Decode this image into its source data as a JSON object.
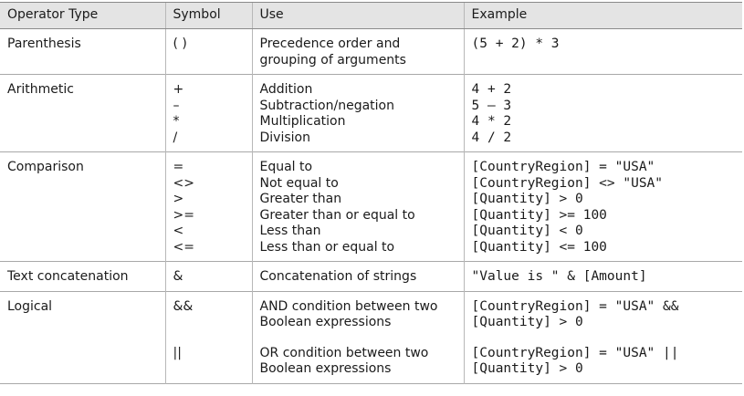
{
  "headers": {
    "type": "Operator Type",
    "symbol": "Symbol",
    "use": "Use",
    "example": "Example"
  },
  "rows": [
    {
      "type": "Parenthesis",
      "symbols": [
        "( )"
      ],
      "uses": [
        "Precedence order and",
        "grouping of arguments"
      ],
      "examples": [
        "(5 + 2) * 3"
      ]
    },
    {
      "type": "Arithmetic",
      "symbols": [
        "+",
        "–",
        "*",
        "/"
      ],
      "uses": [
        "Addition",
        "Subtraction/negation",
        "Multiplication",
        "Division"
      ],
      "examples": [
        "4 + 2",
        "5 – 3",
        "4 * 2",
        "4 / 2"
      ]
    },
    {
      "type": "Comparison",
      "symbols": [
        "=",
        "<>",
        ">",
        ">=",
        "<",
        "<="
      ],
      "uses": [
        "Equal to",
        "Not equal to",
        "Greater than",
        "Greater than or equal to",
        "Less than",
        "Less than or equal to"
      ],
      "examples": [
        "[CountryRegion] = \"USA\"",
        "[CountryRegion] <> \"USA\"",
        "[Quantity] > 0",
        "[Quantity] >= 100",
        "[Quantity] < 0",
        "[Quantity] <= 100"
      ]
    },
    {
      "type": "Text concatenation",
      "symbols": [
        "&"
      ],
      "uses": [
        "Concatenation of strings"
      ],
      "examples": [
        "\"Value is \" & [Amount]"
      ]
    },
    {
      "type": "Logical",
      "symbols": [
        "&&",
        "||"
      ],
      "uses": [
        "AND condition between two",
        "Boolean expressions",
        "OR condition between two",
        "Boolean expressions"
      ],
      "examples": [
        "[CountryRegion] = \"USA\" &&",
        "[Quantity] > 0",
        "[CountryRegion] = \"USA\" ||",
        "[Quantity] > 0"
      ]
    }
  ]
}
